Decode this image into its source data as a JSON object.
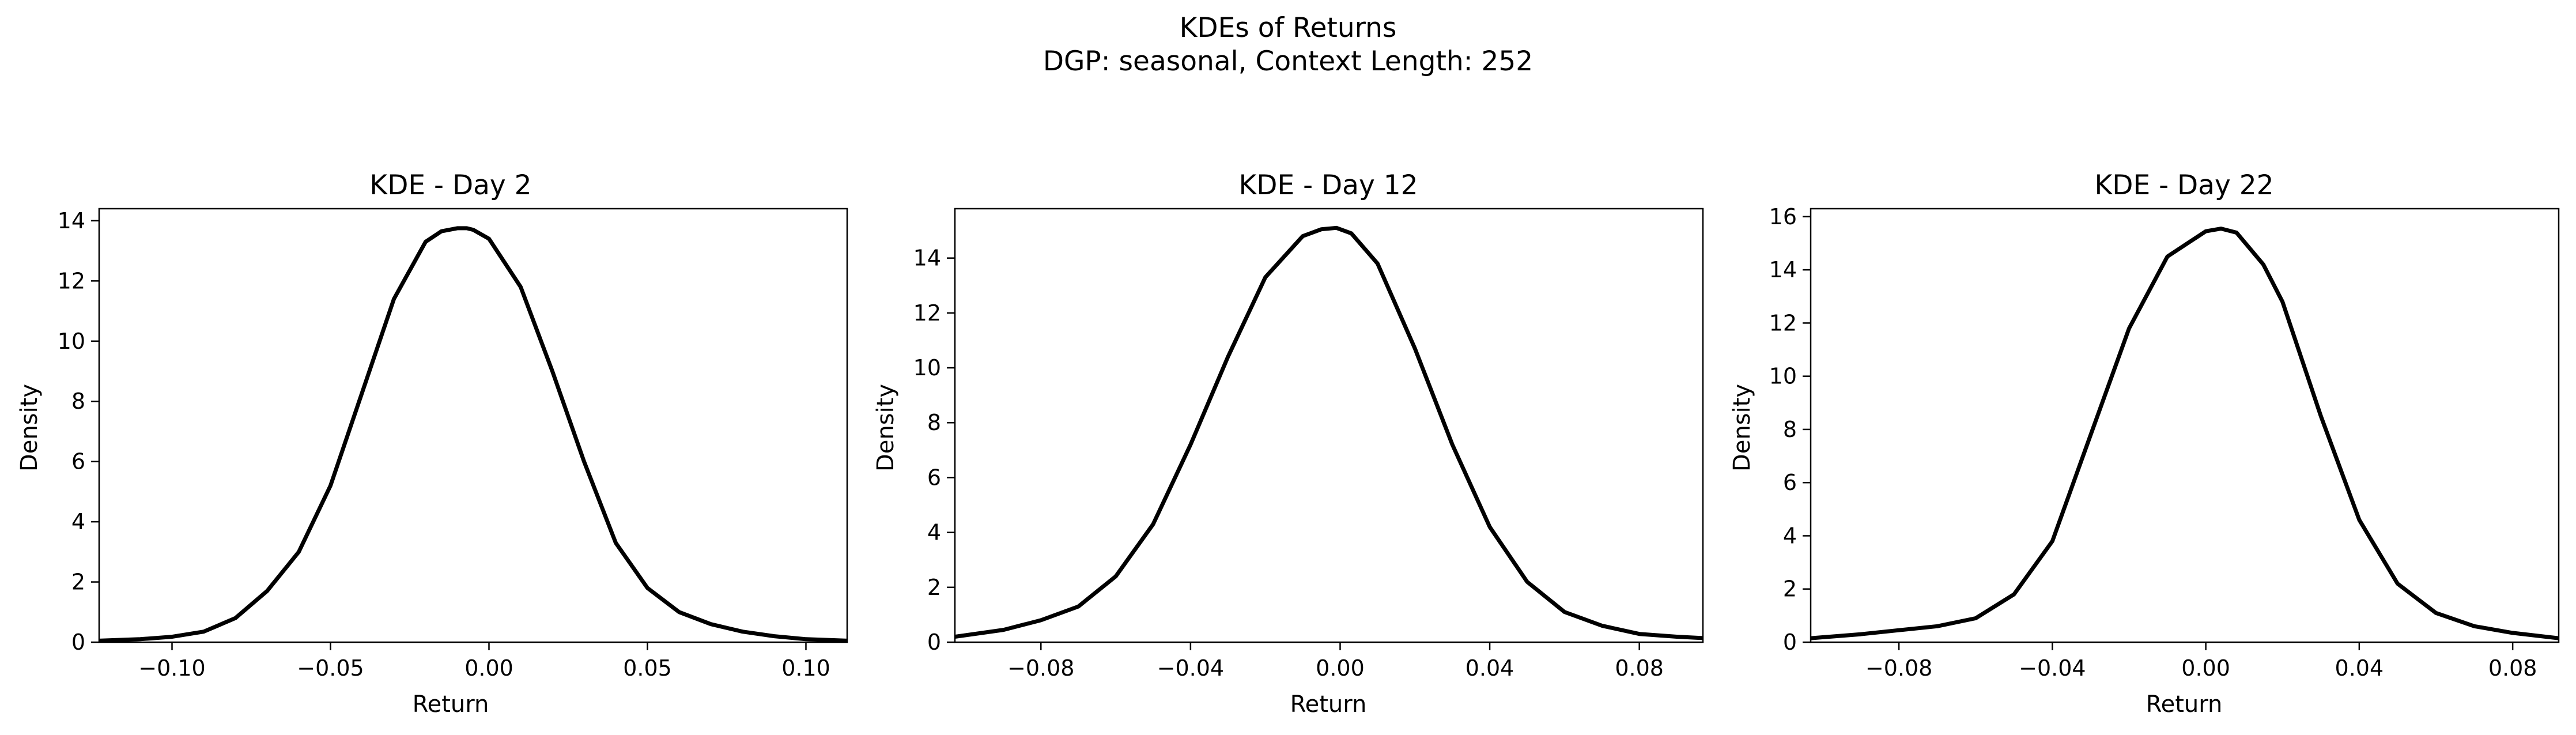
{
  "figure": {
    "title_line1": "KDEs of Returns",
    "title_line2": "DGP: seasonal, Context Length: 252"
  },
  "chart_data": [
    {
      "type": "line",
      "title": "KDE - Day 2",
      "xlabel": "Return",
      "ylabel": "Density",
      "xlim": [
        -0.123,
        0.113
      ],
      "ylim": [
        0,
        14.4
      ],
      "xticks": [
        -0.1,
        -0.05,
        0.0,
        0.05,
        0.1
      ],
      "xtick_labels": [
        "−0.10",
        "−0.05",
        "0.00",
        "0.05",
        "0.10"
      ],
      "yticks": [
        0,
        2,
        4,
        6,
        8,
        10,
        12,
        14
      ],
      "ytick_labels": [
        "0",
        "2",
        "4",
        "6",
        "8",
        "10",
        "12",
        "14"
      ],
      "grid": false,
      "series": [
        {
          "color": "#000000",
          "x": [
            -0.123,
            -0.11,
            -0.1,
            -0.09,
            -0.08,
            -0.07,
            -0.06,
            -0.05,
            -0.04,
            -0.03,
            -0.02,
            -0.015,
            -0.01,
            -0.007,
            -0.005,
            0.0,
            0.01,
            0.02,
            0.03,
            0.04,
            0.05,
            0.06,
            0.07,
            0.08,
            0.09,
            0.1,
            0.113
          ],
          "y": [
            0.05,
            0.1,
            0.18,
            0.35,
            0.8,
            1.7,
            3.0,
            5.2,
            8.3,
            11.4,
            13.3,
            13.65,
            13.75,
            13.75,
            13.7,
            13.4,
            11.8,
            9.0,
            6.0,
            3.3,
            1.8,
            1.0,
            0.6,
            0.35,
            0.2,
            0.1,
            0.05
          ]
        }
      ]
    },
    {
      "type": "line",
      "title": "KDE - Day 12",
      "xlabel": "Return",
      "ylabel": "Density",
      "xlim": [
        -0.103,
        0.097
      ],
      "ylim": [
        0,
        15.8
      ],
      "xticks": [
        -0.08,
        -0.04,
        0.0,
        0.04,
        0.08
      ],
      "xtick_labels": [
        "−0.08",
        "−0.04",
        "0.00",
        "0.04",
        "0.08"
      ],
      "yticks": [
        0,
        2,
        4,
        6,
        8,
        10,
        12,
        14
      ],
      "ytick_labels": [
        "0",
        "2",
        "4",
        "6",
        "8",
        "10",
        "12",
        "14"
      ],
      "grid": false,
      "series": [
        {
          "color": "#000000",
          "x": [
            -0.103,
            -0.09,
            -0.08,
            -0.07,
            -0.06,
            -0.05,
            -0.04,
            -0.03,
            -0.02,
            -0.01,
            -0.005,
            -0.001,
            0.003,
            0.01,
            0.02,
            0.03,
            0.04,
            0.05,
            0.06,
            0.07,
            0.08,
            0.09,
            0.097
          ],
          "y": [
            0.2,
            0.45,
            0.8,
            1.3,
            2.4,
            4.3,
            7.2,
            10.4,
            13.3,
            14.8,
            15.05,
            15.1,
            14.9,
            13.8,
            10.7,
            7.2,
            4.2,
            2.2,
            1.1,
            0.6,
            0.3,
            0.2,
            0.15
          ]
        }
      ]
    },
    {
      "type": "line",
      "title": "KDE - Day 22",
      "xlabel": "Return",
      "ylabel": "Density",
      "xlim": [
        -0.103,
        0.092
      ],
      "ylim": [
        0,
        16.3
      ],
      "xticks": [
        -0.08,
        -0.04,
        0.0,
        0.04,
        0.08
      ],
      "xtick_labels": [
        "−0.08",
        "−0.04",
        "0.00",
        "0.04",
        "0.08"
      ],
      "yticks": [
        0,
        2,
        4,
        6,
        8,
        10,
        12,
        14,
        16
      ],
      "ytick_labels": [
        "0",
        "2",
        "4",
        "6",
        "8",
        "10",
        "12",
        "14",
        "16"
      ],
      "grid": false,
      "series": [
        {
          "color": "#000000",
          "x": [
            -0.103,
            -0.09,
            -0.08,
            -0.07,
            -0.06,
            -0.05,
            -0.04,
            -0.03,
            -0.02,
            -0.01,
            0.0,
            0.004,
            0.008,
            0.015,
            0.02,
            0.03,
            0.04,
            0.05,
            0.06,
            0.07,
            0.08,
            0.092
          ],
          "y": [
            0.15,
            0.3,
            0.45,
            0.6,
            0.9,
            1.8,
            3.8,
            7.8,
            11.8,
            14.5,
            15.45,
            15.55,
            15.4,
            14.2,
            12.8,
            8.5,
            4.6,
            2.2,
            1.1,
            0.6,
            0.35,
            0.15
          ]
        }
      ]
    }
  ]
}
